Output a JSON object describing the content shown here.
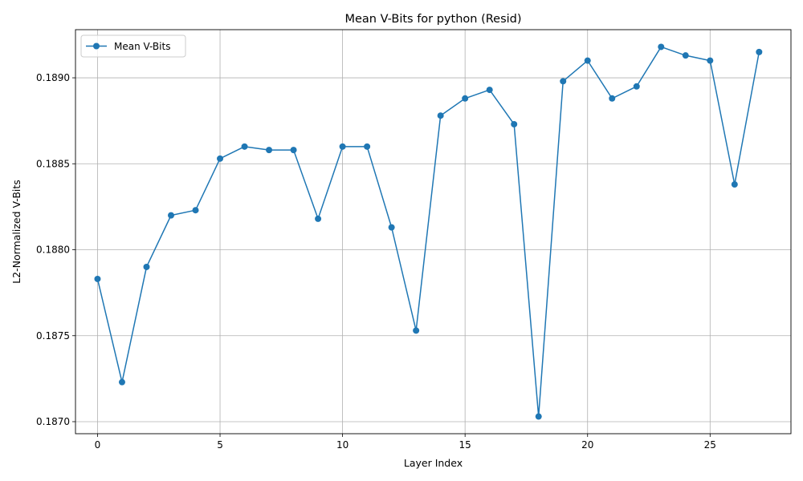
{
  "chart_data": {
    "type": "line",
    "title": "Mean V-Bits for python (Resid)",
    "xlabel": "Layer Index",
    "ylabel": "L2-Normalized V-Bits",
    "xlim": [
      -0.9,
      28.3
    ],
    "ylim": [
      0.18693,
      0.18928
    ],
    "x_ticks": [
      0,
      5,
      10,
      15,
      20,
      25
    ],
    "x_tick_labels": [
      "0",
      "5",
      "10",
      "15",
      "20",
      "25"
    ],
    "y_ticks": [
      0.187,
      0.1875,
      0.188,
      0.1885,
      0.189
    ],
    "y_tick_labels": [
      "0.1870",
      "0.1875",
      "0.1880",
      "0.1885",
      "0.1890"
    ],
    "grid": true,
    "legend_position": "top-left",
    "series": [
      {
        "name": "Mean V-Bits",
        "color": "#1f77b4",
        "marker": "circle",
        "x": [
          0,
          1,
          2,
          3,
          4,
          5,
          6,
          7,
          8,
          9,
          10,
          11,
          12,
          13,
          14,
          15,
          16,
          17,
          18,
          19,
          20,
          21,
          22,
          23,
          24,
          25,
          26,
          27
        ],
        "values": [
          0.18783,
          0.18723,
          0.1879,
          0.1882,
          0.18823,
          0.18853,
          0.1886,
          0.18858,
          0.18858,
          0.18818,
          0.1886,
          0.1886,
          0.18813,
          0.18753,
          0.18878,
          0.18888,
          0.18893,
          0.18873,
          0.18703,
          0.18898,
          0.1891,
          0.18888,
          0.18895,
          0.18918,
          0.18913,
          0.1891,
          0.18838,
          0.18915
        ]
      }
    ]
  }
}
